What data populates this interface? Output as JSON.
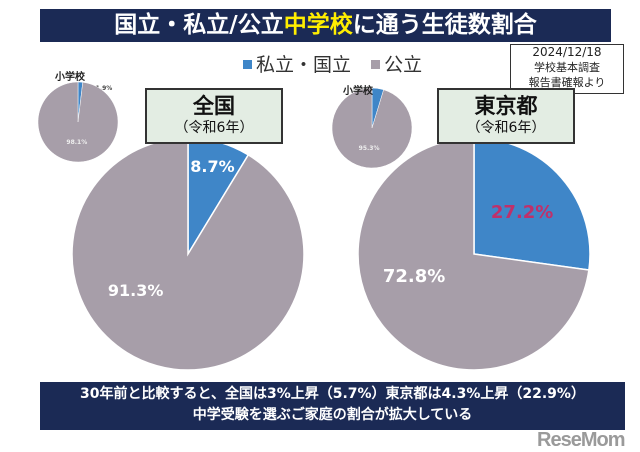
{
  "title": {
    "part1": "国立・私立/公立",
    "highlight": "中学校",
    "part2": "に通う生徒数割合"
  },
  "source": {
    "date": "2024/12/18",
    "line1": "学校基本調査",
    "line2": "報告書確報より"
  },
  "colors": {
    "private": "#3f86c8",
    "public": "#a79ea9"
  },
  "chart_data": [
    {
      "type": "pie",
      "title": "全国",
      "subtitle": "（令和6年）",
      "legend": [
        "私立・国立",
        "公立"
      ],
      "values": [
        8.7,
        91.3
      ],
      "labels": [
        "8.7%",
        "91.3%"
      ]
    },
    {
      "type": "pie",
      "title": "小学校",
      "values": [
        1.9,
        98.1
      ],
      "labels": [
        "1.9%",
        "98.1%"
      ]
    },
    {
      "type": "pie",
      "title": "東京都",
      "subtitle": "（令和6年）",
      "values": [
        27.2,
        72.8
      ],
      "labels": [
        "27.2%",
        "72.8%"
      ]
    },
    {
      "type": "pie",
      "title": "小学校",
      "values": [
        4.7,
        95.3
      ],
      "labels": [
        "4.7%",
        "95.3%"
      ]
    }
  ],
  "note": {
    "line1": "30年前と比較すると、全国は3%上昇（5.7%）東京都は4.3%上昇（22.9%）",
    "line2": "中学受験を選ぶご家庭の割合が拡大している"
  },
  "logo": "ReseMom"
}
